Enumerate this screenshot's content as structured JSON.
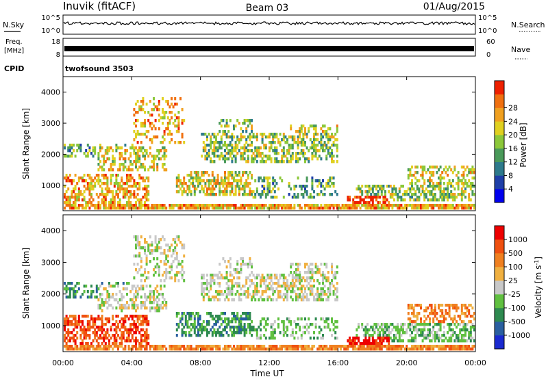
{
  "header": {
    "station": "Inuvik (fitACF)",
    "beam": "Beam 03",
    "date": "01/Aug/2015"
  },
  "summary_panels": {
    "nsky_label": "N.Sky",
    "nsky_ticks": [
      "10^5",
      "10^0"
    ],
    "nsearch_label": "N.Search",
    "nsearch_ticks": [
      "10^5",
      "10^0"
    ],
    "freq_label": "Freq.",
    "freq_unit": "[MHz]",
    "freq_ticks": [
      "18",
      "8"
    ],
    "nave_label": "Nave",
    "nave_ticks": [
      "60",
      "0"
    ],
    "cpid_label": "CPID",
    "cpid_value": "twofsound 3503"
  },
  "colors": {
    "power": [
      "#0000ee",
      "#1f3fa8",
      "#2e7a8c",
      "#4a9a5a",
      "#8cc83a",
      "#e0d020",
      "#f0a020",
      "#f07010",
      "#ee2000"
    ],
    "velocity": [
      "#ee0000",
      "#f05010",
      "#f08020",
      "#f0b040",
      "#c8c8c8",
      "#60c040",
      "#2e8a50",
      "#2a5fa0",
      "#1a2ad0"
    ]
  },
  "chart_data": [
    {
      "type": "heatmap",
      "title": "",
      "ylabel": "Slant Range [km]",
      "xlabel": "",
      "xlim": [
        "00:00",
        "00:00"
      ],
      "ylim": [
        180,
        4500
      ],
      "y_ticks": [
        "1000",
        "2000",
        "3000",
        "4000"
      ],
      "colorbar": {
        "label": "Power [dB]",
        "ticks": [
          "4",
          "8",
          "12",
          "16",
          "20",
          "24",
          "28"
        ],
        "range": [
          0,
          32
        ]
      }
    },
    {
      "type": "heatmap",
      "title": "",
      "ylabel": "Slant Range [km]",
      "xlabel": "Time UT",
      "x_ticks": [
        "00:00",
        "04:00",
        "08:00",
        "12:00",
        "16:00",
        "20:00",
        "00:00"
      ],
      "ylim": [
        180,
        4500
      ],
      "y_ticks": [
        "1000",
        "2000",
        "3000",
        "4000"
      ],
      "colorbar": {
        "label": "Velocity [m s",
        "label_sup": "-1",
        "label_end": "]",
        "ticks": [
          "1000",
          "500",
          "100",
          "25",
          "-25",
          "-100",
          "-500",
          "-1000"
        ]
      }
    }
  ]
}
